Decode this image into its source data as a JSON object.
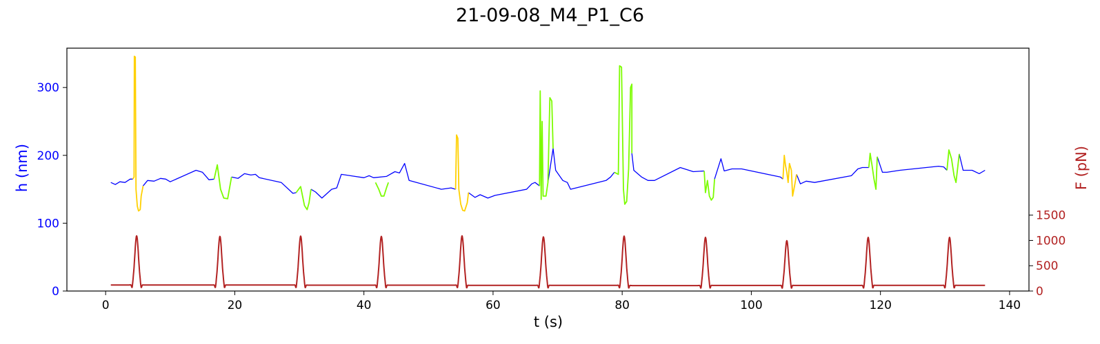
{
  "chart_data": {
    "type": "line",
    "title": "21-09-08_M4_P1_C6",
    "xlabel": "t (s)",
    "ylabel_left": "h (nm)",
    "ylabel_right": "F (pN)",
    "xlim": [
      -6,
      143
    ],
    "ylim_left": [
      0,
      358
    ],
    "ylim_right": [
      0,
      4800
    ],
    "x_ticks": [
      0,
      20,
      40,
      60,
      80,
      100,
      120,
      140
    ],
    "y_left_ticks": [
      0,
      100,
      200,
      300
    ],
    "y_right_ticks": [
      0,
      500,
      1000,
      1500
    ],
    "grid": false,
    "colors": {
      "h_baseline": "#0000ff",
      "h_green": "#7cfc00",
      "h_yellow": "#ffd000",
      "force": "#b22222",
      "left_axis": "#0000ff",
      "right_axis": "#b22222"
    },
    "series": [
      {
        "axis": "left",
        "color": "h_baseline",
        "segments": [
          [
            [
              0.8,
              160
            ],
            [
              1.5,
              157
            ],
            [
              2.2,
              161
            ],
            [
              3,
              160
            ],
            [
              3.8,
              165
            ],
            [
              4.2,
              165
            ]
          ],
          [
            [
              5.8,
              155
            ],
            [
              6.5,
              163
            ],
            [
              7.5,
              162
            ],
            [
              8.5,
              166
            ],
            [
              9.3,
              165
            ],
            [
              10,
              161
            ],
            [
              14,
              178
            ],
            [
              15,
              175
            ],
            [
              16,
              164
            ],
            [
              16.8,
              165
            ]
          ],
          [
            [
              19.5,
              168
            ],
            [
              20.5,
              166
            ],
            [
              21.5,
              173
            ],
            [
              22.5,
              171
            ],
            [
              23.2,
              172
            ],
            [
              23.8,
              167
            ],
            [
              27.2,
              160
            ],
            [
              29,
              144
            ],
            [
              29.5,
              145
            ]
          ],
          [
            [
              31.8,
              150
            ],
            [
              32.5,
              146
            ],
            [
              33.5,
              137
            ],
            [
              35,
              150
            ],
            [
              35.8,
              152
            ],
            [
              36.5,
              172
            ],
            [
              40,
              167
            ],
            [
              40.8,
              170
            ],
            [
              41.5,
              167
            ],
            [
              43.5,
              169
            ],
            [
              44.8,
              176
            ],
            [
              45.5,
              174
            ],
            [
              46.3,
              188
            ],
            [
              47,
              163
            ],
            [
              52,
              150
            ],
            [
              53.5,
              152
            ],
            [
              54.2,
              150
            ]
          ],
          [
            [
              56.2,
              145
            ],
            [
              57.2,
              138
            ],
            [
              58,
              142
            ],
            [
              59.2,
              137
            ],
            [
              60.3,
              141
            ],
            [
              65.2,
              150
            ],
            [
              66,
              158
            ],
            [
              66.5,
              160
            ],
            [
              67.2,
              155
            ]
          ],
          [
            [
              68.5,
              160
            ],
            [
              69.3,
              210
            ],
            [
              69.7,
              178
            ],
            [
              70.8,
              163
            ],
            [
              71.5,
              160
            ],
            [
              72,
              150
            ],
            [
              77.5,
              163
            ],
            [
              78.2,
              168
            ],
            [
              78.8,
              175
            ]
          ],
          [
            [
              81.5,
              203
            ],
            [
              81.8,
              178
            ],
            [
              83,
              168
            ],
            [
              84,
              163
            ],
            [
              85,
              163
            ],
            [
              89,
              182
            ],
            [
              91,
              176
            ],
            [
              92.7,
              177
            ]
          ],
          [
            [
              94.3,
              165
            ],
            [
              95.3,
              195
            ],
            [
              95.8,
              177
            ],
            [
              97,
              180
            ],
            [
              98.5,
              180
            ],
            [
              104.5,
              168
            ],
            [
              104.9,
              165
            ]
          ],
          [
            [
              107,
              172
            ],
            [
              107.6,
              158
            ],
            [
              108.5,
              162
            ],
            [
              109.8,
              160
            ],
            [
              115.5,
              170
            ],
            [
              116.5,
              180
            ],
            [
              117.2,
              182
            ],
            [
              118.2,
              182
            ]
          ],
          [
            [
              119.5,
              198
            ],
            [
              120.3,
              175
            ],
            [
              121,
              175
            ],
            [
              123,
              178
            ],
            [
              129,
              184
            ],
            [
              129.8,
              183
            ],
            [
              130.3,
              178
            ]
          ],
          [
            [
              132.2,
              202
            ],
            [
              132.8,
              178
            ],
            [
              134.2,
              178
            ],
            [
              135.3,
              173
            ],
            [
              136.2,
              178
            ]
          ]
        ]
      },
      {
        "axis": "left",
        "color": "h_yellow",
        "segments": [
          [
            [
              4.2,
              165
            ],
            [
              4.4,
              168
            ],
            [
              4.45,
              346
            ],
            [
              4.6,
              345
            ],
            [
              4.7,
              150
            ],
            [
              4.9,
              125
            ],
            [
              5.1,
              118
            ],
            [
              5.35,
              120
            ],
            [
              5.5,
              140
            ],
            [
              5.8,
              155
            ]
          ],
          [
            [
              54.2,
              150
            ],
            [
              54.35,
              230
            ],
            [
              54.55,
              225
            ],
            [
              54.7,
              150
            ],
            [
              55,
              128
            ],
            [
              55.3,
              119
            ],
            [
              55.6,
              118
            ],
            [
              56,
              130
            ],
            [
              56.2,
              145
            ]
          ],
          [
            [
              104.9,
              165
            ],
            [
              105.1,
              200
            ],
            [
              105.3,
              185
            ],
            [
              105.5,
              175
            ],
            [
              105.7,
              160
            ],
            [
              105.9,
              188
            ],
            [
              106.2,
              178
            ],
            [
              106.4,
              140
            ],
            [
              106.7,
              155
            ],
            [
              107,
              172
            ]
          ]
        ]
      },
      {
        "axis": "left",
        "color": "h_green",
        "segments": [
          [
            [
              16.8,
              165
            ],
            [
              17.3,
              186
            ],
            [
              17.8,
              150
            ],
            [
              18.3,
              137
            ],
            [
              18.9,
              136
            ],
            [
              19.5,
              168
            ]
          ],
          [
            [
              29.5,
              145
            ],
            [
              30.2,
              154
            ],
            [
              30.8,
              126
            ],
            [
              31.2,
              120
            ],
            [
              31.5,
              130
            ],
            [
              31.8,
              150
            ]
          ],
          [
            [
              41.8,
              160
            ],
            [
              42.3,
              150
            ],
            [
              42.7,
              140
            ],
            [
              43.1,
              140
            ],
            [
              43.5,
              152
            ],
            [
              43.8,
              160
            ]
          ],
          [
            [
              67.2,
              155
            ],
            [
              67.3,
              295
            ],
            [
              67.45,
              135
            ],
            [
              67.6,
              250
            ],
            [
              67.75,
              140
            ],
            [
              68.2,
              140
            ],
            [
              68.5,
              160
            ],
            [
              68.8,
              285
            ],
            [
              69.1,
              280
            ],
            [
              69.3,
              210
            ]
          ],
          [
            [
              78.8,
              175
            ],
            [
              79.4,
              172
            ],
            [
              79.6,
              332
            ],
            [
              79.9,
              330
            ],
            [
              80.2,
              150
            ],
            [
              80.4,
              128
            ],
            [
              80.7,
              132
            ],
            [
              81,
              180
            ],
            [
              81.3,
              300
            ],
            [
              81.5,
              305
            ],
            [
              81.5,
              203
            ]
          ],
          [
            [
              92.7,
              177
            ],
            [
              92.9,
              145
            ],
            [
              93.2,
              163
            ],
            [
              93.5,
              140
            ],
            [
              93.8,
              134
            ],
            [
              94.1,
              138
            ],
            [
              94.3,
              165
            ]
          ],
          [
            [
              118.2,
              182
            ],
            [
              118.4,
              203
            ],
            [
              118.7,
              185
            ],
            [
              119,
              165
            ],
            [
              119.3,
              150
            ],
            [
              119.5,
              198
            ]
          ],
          [
            [
              130.3,
              178
            ],
            [
              130.6,
              208
            ],
            [
              131,
              195
            ],
            [
              131.4,
              170
            ],
            [
              131.7,
              160
            ],
            [
              132.2,
              202
            ]
          ]
        ]
      },
      {
        "axis": "right",
        "color": "force",
        "peak_times": [
          4.8,
          17.7,
          30.2,
          42.7,
          55.2,
          67.8,
          80.3,
          92.9,
          105.5,
          118.1,
          130.7
        ],
        "peak_values": [
          1090,
          1080,
          1085,
          1080,
          1090,
          1070,
          1085,
          1060,
          995,
          1060,
          1060
        ],
        "baseline_values": [
          120,
          118,
          118,
          115,
          115,
          112,
          112,
          108,
          110,
          110,
          112,
          112
        ],
        "t_start": 0.8,
        "t_end": 136.2
      }
    ]
  }
}
